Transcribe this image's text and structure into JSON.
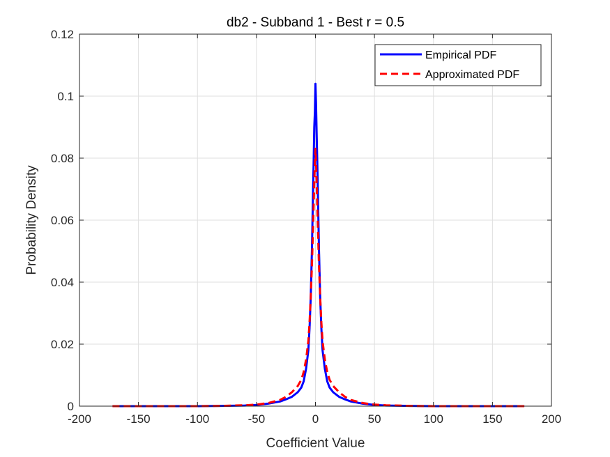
{
  "chart_data": {
    "type": "line",
    "title": "db2 - Subband 1 - Best r = 0.5",
    "xlabel": "Coefficient Value",
    "ylabel": "Probability Density",
    "xlim": [
      -200,
      200
    ],
    "ylim": [
      0,
      0.12
    ],
    "xticks": [
      -200,
      -150,
      -100,
      -50,
      0,
      50,
      100,
      150,
      200
    ],
    "xtick_labels": [
      "-200",
      "-150",
      "-100",
      "-50",
      "0",
      "50",
      "100",
      "150",
      "200"
    ],
    "yticks": [
      0,
      0.02,
      0.04,
      0.06,
      0.08,
      0.1,
      0.12
    ],
    "ytick_labels": [
      "0",
      "0.02",
      "0.04",
      "0.06",
      "0.08",
      "0.1",
      "0.12"
    ],
    "grid": true,
    "legend_position": "top-right",
    "series": [
      {
        "name": "Empirical PDF",
        "color": "#0000ff",
        "style": "solid",
        "x": [
          -172,
          -150,
          -120,
          -100,
          -80,
          -60,
          -50,
          -40,
          -30,
          -25,
          -20,
          -15,
          -12,
          -10,
          -8,
          -6,
          -5,
          -4,
          -3,
          -2,
          -1.5,
          -1,
          -0.5,
          0,
          0.5,
          1,
          1.5,
          2,
          3,
          4,
          5,
          6,
          8,
          10,
          12,
          15,
          20,
          25,
          30,
          40,
          50,
          60,
          80,
          100,
          120,
          150,
          177
        ],
        "y": [
          0,
          0,
          0,
          0,
          0.0001,
          0.0002,
          0.0004,
          0.0008,
          0.0015,
          0.0022,
          0.003,
          0.0045,
          0.006,
          0.008,
          0.012,
          0.018,
          0.025,
          0.035,
          0.05,
          0.07,
          0.08,
          0.09,
          0.095,
          0.104,
          0.098,
          0.088,
          0.08,
          0.07,
          0.05,
          0.035,
          0.025,
          0.018,
          0.012,
          0.008,
          0.006,
          0.0045,
          0.003,
          0.0022,
          0.0015,
          0.0008,
          0.0004,
          0.0002,
          0.0001,
          0,
          0,
          0,
          0
        ]
      },
      {
        "name": "Approximated PDF",
        "color": "#ff0000",
        "style": "dashed",
        "x": [
          -172,
          -150,
          -120,
          -100,
          -80,
          -60,
          -50,
          -40,
          -30,
          -25,
          -20,
          -15,
          -12,
          -10,
          -8,
          -6,
          -5,
          -4,
          -3,
          -2,
          -1,
          -0.5,
          0,
          0.5,
          1,
          2,
          3,
          4,
          5,
          6,
          8,
          10,
          12,
          15,
          20,
          25,
          30,
          40,
          50,
          60,
          80,
          100,
          120,
          150,
          177
        ],
        "y": [
          0,
          0,
          0,
          0,
          0.0001,
          0.0003,
          0.0005,
          0.001,
          0.002,
          0.003,
          0.0045,
          0.0065,
          0.0085,
          0.011,
          0.015,
          0.021,
          0.027,
          0.035,
          0.045,
          0.058,
          0.072,
          0.079,
          0.083,
          0.079,
          0.072,
          0.058,
          0.045,
          0.035,
          0.027,
          0.021,
          0.015,
          0.011,
          0.0085,
          0.0065,
          0.0045,
          0.003,
          0.002,
          0.001,
          0.0005,
          0.0003,
          0.0001,
          0,
          0,
          0,
          0
        ]
      }
    ]
  }
}
